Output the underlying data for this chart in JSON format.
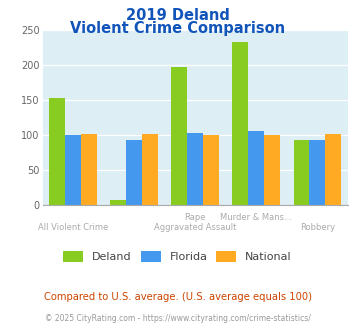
{
  "title_line1": "2019 Deland",
  "title_line2": "Violent Crime Comparison",
  "deland": [
    153,
    7,
    196,
    232,
    92
  ],
  "florida": [
    100,
    92,
    103,
    105,
    92
  ],
  "national": [
    101,
    101,
    100,
    100,
    101
  ],
  "color_deland": "#88cc22",
  "color_florida": "#4499ee",
  "color_national": "#ffaa22",
  "bg_color": "#ddeef5",
  "ylim": [
    0,
    250
  ],
  "yticks": [
    0,
    50,
    100,
    150,
    200,
    250
  ],
  "top_labels": [
    "",
    "",
    "Rape",
    "Murder & Mans...",
    ""
  ],
  "bottom_labels": [
    "All Violent Crime",
    "",
    "Aggravated Assault",
    "",
    "Robbery"
  ],
  "title_color": "#1155bb",
  "label_color": "#aaaaaa",
  "footnote1": "Compared to U.S. average. (U.S. average equals 100)",
  "footnote2": "© 2025 CityRating.com - https://www.cityrating.com/crime-statistics/",
  "legend_labels": [
    "Deland",
    "Florida",
    "National"
  ]
}
